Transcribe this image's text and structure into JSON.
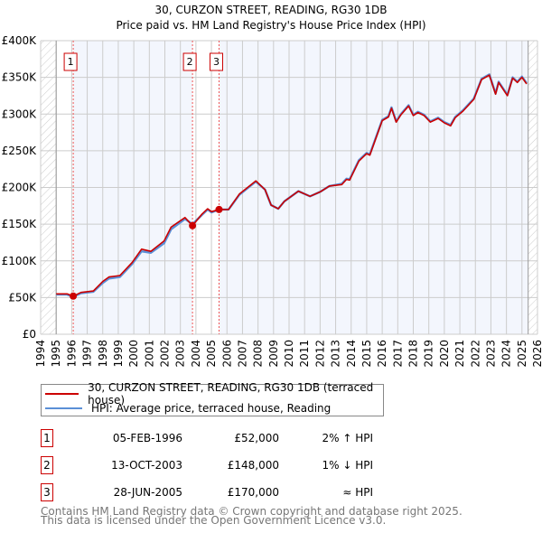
{
  "chart_data": {
    "type": "line",
    "title": "30, CURZON STREET, READING, RG30 1DB",
    "subtitle": "Price paid vs. HM Land Registry's House Price Index (HPI)",
    "xlim": [
      1994,
      2026
    ],
    "ylim": [
      0,
      400000
    ],
    "x_ticks": [
      "1994",
      "1995",
      "1996",
      "1997",
      "1998",
      "1999",
      "2000",
      "2001",
      "2002",
      "2003",
      "2004",
      "2005",
      "2006",
      "2007",
      "2008",
      "2009",
      "2010",
      "2011",
      "2012",
      "2013",
      "2014",
      "2015",
      "2016",
      "2017",
      "2018",
      "2019",
      "2020",
      "2021",
      "2022",
      "2023",
      "2024",
      "2025",
      "2026"
    ],
    "y_ticks": [
      {
        "v": 0,
        "label": "£0"
      },
      {
        "v": 50000,
        "label": "£50K"
      },
      {
        "v": 100000,
        "label": "£100K"
      },
      {
        "v": 150000,
        "label": "£150K"
      },
      {
        "v": 200000,
        "label": "£200K"
      },
      {
        "v": 250000,
        "label": "£250K"
      },
      {
        "v": 300000,
        "label": "£300K"
      },
      {
        "v": 350000,
        "label": "£350K"
      },
      {
        "v": 400000,
        "label": "£400K"
      }
    ],
    "grid": true,
    "data_end": 2025.4,
    "series": [
      {
        "name": "30, CURZON STREET, READING, RG30 1DB (terraced house)",
        "color": "#cc0000",
        "x": [
          1995.0,
          1995.7,
          1996.1,
          1996.6,
          1997.4,
          1998.0,
          1998.4,
          1999.1,
          1999.9,
          2000.5,
          2001.1,
          2001.95,
          2002.4,
          2003.3,
          2003.78,
          2004.4,
          2004.76,
          2005.0,
          2005.49,
          2006.1,
          2006.8,
          2007.86,
          2008.45,
          2008.84,
          2009.3,
          2009.7,
          2010.6,
          2011.35,
          2012.0,
          2012.6,
          2013.4,
          2013.7,
          2013.9,
          2014.5,
          2015.0,
          2015.2,
          2016.0,
          2016.4,
          2016.6,
          2016.9,
          2017.2,
          2017.7,
          2018.0,
          2018.3,
          2018.7,
          2019.1,
          2019.6,
          2020.0,
          2020.4,
          2020.7,
          2021.2,
          2021.9,
          2022.4,
          2022.9,
          2023.3,
          2023.5,
          2024.06,
          2024.4,
          2024.7,
          2025.0,
          2025.3
        ],
        "y": [
          55000,
          55000,
          52000,
          57000,
          59000,
          72000,
          78000,
          80000,
          98000,
          116000,
          113000,
          127000,
          146000,
          159000,
          148000,
          164000,
          171000,
          167000,
          170000,
          170000,
          191000,
          209000,
          197000,
          176000,
          171000,
          181000,
          195000,
          188000,
          194000,
          202000,
          204000,
          211000,
          210000,
          236000,
          246000,
          244000,
          291000,
          296000,
          308000,
          289000,
          299000,
          311000,
          298000,
          302000,
          298000,
          289000,
          294000,
          288000,
          284000,
          295000,
          304000,
          320000,
          347000,
          353000,
          327000,
          343000,
          325000,
          349000,
          343000,
          350000,
          341000
        ]
      },
      {
        "name": "HPI: Average price, terraced house, Reading",
        "color": "#5b8fd6",
        "x": [
          1995.0,
          1995.7,
          1996.1,
          1996.6,
          1997.4,
          1998.0,
          1998.4,
          1999.1,
          1999.9,
          2000.5,
          2001.1,
          2001.95,
          2002.4,
          2003.3,
          2003.78,
          2004.4,
          2004.76,
          2005.0,
          2005.49,
          2006.1,
          2006.8,
          2007.86,
          2008.45,
          2008.84,
          2009.3,
          2009.7,
          2010.6,
          2011.35,
          2012.0,
          2012.6,
          2013.4,
          2013.7,
          2013.9,
          2014.5,
          2015.0,
          2015.2,
          2016.0,
          2016.4,
          2016.6,
          2016.9,
          2017.2,
          2017.7,
          2018.0,
          2018.3,
          2018.7,
          2019.1,
          2019.6,
          2020.0,
          2020.4,
          2020.7,
          2021.2,
          2021.9,
          2022.4,
          2022.9,
          2023.3,
          2023.5,
          2024.06,
          2024.4,
          2024.7,
          2025.0,
          2025.3
        ],
        "y": [
          54000,
          54000,
          51000,
          56000,
          58000,
          70000,
          76000,
          78000,
          96000,
          113000,
          111000,
          124000,
          143000,
          157000,
          150000,
          163000,
          170000,
          166000,
          170000,
          170000,
          190000,
          208000,
          197000,
          176000,
          171000,
          181000,
          195000,
          188000,
          194000,
          202000,
          205000,
          212000,
          211000,
          237000,
          247000,
          245000,
          292000,
          297000,
          309000,
          290000,
          300000,
          312000,
          299000,
          303000,
          299000,
          290000,
          295000,
          289000,
          285000,
          296000,
          305000,
          321000,
          348000,
          354000,
          328000,
          344000,
          326000,
          350000,
          344000,
          351000,
          342000
        ]
      }
    ],
    "sales": [
      {
        "n": "1",
        "x": 1996.1,
        "y": 52000
      },
      {
        "n": "2",
        "x": 2003.78,
        "y": 148000
      },
      {
        "n": "3",
        "x": 2005.49,
        "y": 170000
      }
    ]
  },
  "legend": {
    "property": "30, CURZON STREET, READING, RG30 1DB (terraced house)",
    "hpi": "HPI: Average price, terraced house, Reading"
  },
  "transactions": [
    {
      "n": "1",
      "date": "05-FEB-1996",
      "price": "£52,000",
      "hpi": "2% ↑ HPI"
    },
    {
      "n": "2",
      "date": "13-OCT-2003",
      "price": "£148,000",
      "hpi": "1% ↓ HPI"
    },
    {
      "n": "3",
      "date": "28-JUN-2005",
      "price": "£170,000",
      "hpi": "≈ HPI"
    }
  ],
  "footer": {
    "line1": "Contains HM Land Registry data © Crown copyright and database right 2025.",
    "line2": "This data is licensed under the Open Government Licence v3.0."
  }
}
